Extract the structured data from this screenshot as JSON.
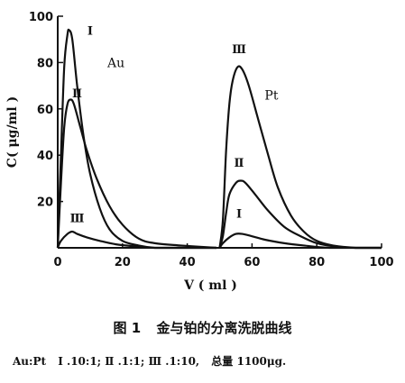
{
  "chart_data": {
    "type": "line",
    "xlabel": "V ( ml )",
    "ylabel": "C( μg/ml )",
    "xlim": [
      0,
      100
    ],
    "ylim": [
      0,
      100
    ],
    "x_ticks": [
      0,
      20,
      40,
      60,
      80,
      100
    ],
    "y_ticks": [
      20,
      40,
      60,
      80,
      100
    ],
    "grid": false,
    "annotations": [
      {
        "text": "Au",
        "x": 18,
        "y": 78
      },
      {
        "text": "Pt",
        "x": 66,
        "y": 64
      }
    ],
    "series": [
      {
        "name": "Ⅰ",
        "group": "Au",
        "label_at": [
          10,
          92
        ],
        "points": [
          [
            0,
            0
          ],
          [
            1,
            40
          ],
          [
            2,
            78
          ],
          [
            3,
            92
          ],
          [
            3.5,
            94
          ],
          [
            4.5,
            90
          ],
          [
            6,
            70
          ],
          [
            8,
            48
          ],
          [
            10,
            32
          ],
          [
            13,
            17
          ],
          [
            16,
            8
          ],
          [
            20,
            3
          ],
          [
            25,
            1
          ],
          [
            30,
            0
          ],
          [
            40,
            0
          ],
          [
            49,
            0
          ]
        ]
      },
      {
        "name": "Ⅱ",
        "group": "Au",
        "label_at": [
          6,
          65
        ],
        "points": [
          [
            0,
            0
          ],
          [
            1,
            28
          ],
          [
            2,
            52
          ],
          [
            3,
            62
          ],
          [
            4,
            64
          ],
          [
            5,
            62
          ],
          [
            7,
            52
          ],
          [
            9,
            42
          ],
          [
            12,
            30
          ],
          [
            16,
            18
          ],
          [
            20,
            10
          ],
          [
            25,
            4
          ],
          [
            30,
            2
          ],
          [
            38,
            1
          ],
          [
            49,
            0
          ]
        ]
      },
      {
        "name": "Ⅲ",
        "group": "Au",
        "label_at": [
          6,
          11
        ],
        "points": [
          [
            0,
            0
          ],
          [
            1,
            3
          ],
          [
            3,
            6
          ],
          [
            4.5,
            7
          ],
          [
            6,
            6
          ],
          [
            9,
            4.5
          ],
          [
            13,
            3
          ],
          [
            18,
            1.5
          ],
          [
            24,
            0.6
          ],
          [
            30,
            0
          ],
          [
            49,
            0
          ]
        ]
      },
      {
        "name": "Ⅲ",
        "group": "Pt",
        "label_at": [
          56,
          84
        ],
        "points": [
          [
            50,
            0
          ],
          [
            51,
            12
          ],
          [
            52,
            42
          ],
          [
            53,
            62
          ],
          [
            54,
            72
          ],
          [
            55.5,
            78
          ],
          [
            57,
            77
          ],
          [
            59,
            70
          ],
          [
            62,
            55
          ],
          [
            65,
            40
          ],
          [
            68,
            26
          ],
          [
            72,
            14
          ],
          [
            76,
            7
          ],
          [
            80,
            3
          ],
          [
            85,
            1
          ],
          [
            92,
            0
          ],
          [
            100,
            0
          ]
        ]
      },
      {
        "name": "Ⅱ",
        "group": "Pt",
        "label_at": [
          56,
          35
        ],
        "points": [
          [
            50,
            0
          ],
          [
            51,
            5
          ],
          [
            52,
            15
          ],
          [
            53,
            23
          ],
          [
            55,
            28
          ],
          [
            56.5,
            29
          ],
          [
            58,
            28
          ],
          [
            61,
            23
          ],
          [
            65,
            16
          ],
          [
            70,
            9
          ],
          [
            75,
            5
          ],
          [
            80,
            2
          ],
          [
            86,
            0.5
          ],
          [
            92,
            0
          ],
          [
            100,
            0
          ]
        ]
      },
      {
        "name": "Ⅰ",
        "group": "Pt",
        "label_at": [
          56,
          13
        ],
        "points": [
          [
            50,
            0
          ],
          [
            51,
            2
          ],
          [
            53,
            4.5
          ],
          [
            55,
            6
          ],
          [
            57,
            6
          ],
          [
            60,
            5
          ],
          [
            64,
            3.5
          ],
          [
            70,
            2
          ],
          [
            76,
            1
          ],
          [
            84,
            0
          ],
          [
            100,
            0
          ]
        ]
      }
    ]
  },
  "caption": {
    "figure_number": "图 1",
    "title": "金与铂的分离洗脱曲线",
    "note_prefix": "Au:Pt",
    "note_ratios": "Ⅰ .10:1;  Ⅱ .1:1;  Ⅲ .1:10,",
    "note_total": "总量 1100μg."
  }
}
